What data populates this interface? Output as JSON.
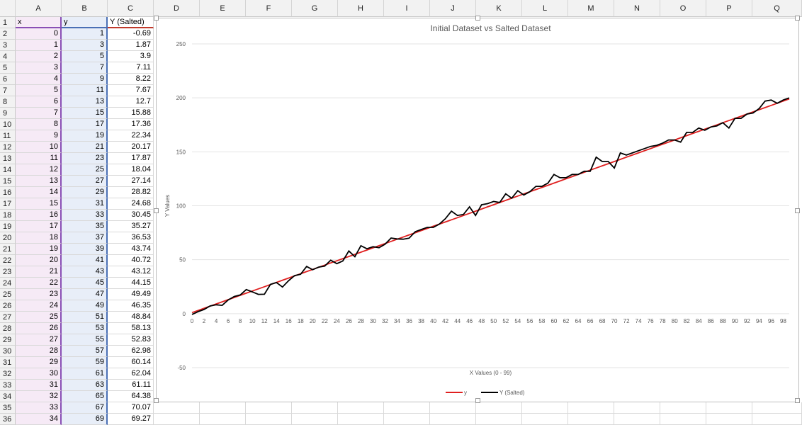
{
  "columns": [
    "A",
    "B",
    "C",
    "D",
    "E",
    "F",
    "G",
    "H",
    "I",
    "J",
    "K",
    "L",
    "M",
    "N",
    "O",
    "P",
    "Q"
  ],
  "rows": [
    "1",
    "2",
    "3",
    "4",
    "5",
    "6",
    "7",
    "8",
    "9",
    "10",
    "11",
    "12",
    "13",
    "14",
    "15",
    "16",
    "17",
    "18",
    "19",
    "20",
    "21",
    "22",
    "23",
    "24",
    "25",
    "26",
    "27",
    "28",
    "29",
    "30",
    "31",
    "32",
    "33",
    "34",
    "35",
    "36"
  ],
  "headers": {
    "x": "x",
    "y": "y",
    "ys": "Y (Salted)"
  },
  "table": [
    [
      0,
      1,
      "-0.69"
    ],
    [
      1,
      3,
      "1.87"
    ],
    [
      2,
      5,
      "3.9"
    ],
    [
      3,
      7,
      "7.11"
    ],
    [
      4,
      9,
      "8.22"
    ],
    [
      5,
      11,
      "7.67"
    ],
    [
      6,
      13,
      "12.7"
    ],
    [
      7,
      15,
      "15.88"
    ],
    [
      8,
      17,
      "17.36"
    ],
    [
      9,
      19,
      "22.34"
    ],
    [
      10,
      21,
      "20.17"
    ],
    [
      11,
      23,
      "17.87"
    ],
    [
      12,
      25,
      "18.04"
    ],
    [
      13,
      27,
      "27.14"
    ],
    [
      14,
      29,
      "28.82"
    ],
    [
      15,
      31,
      "24.68"
    ],
    [
      16,
      33,
      "30.45"
    ],
    [
      17,
      35,
      "35.27"
    ],
    [
      18,
      37,
      "36.53"
    ],
    [
      19,
      39,
      "43.74"
    ],
    [
      20,
      41,
      "40.72"
    ],
    [
      21,
      43,
      "43.12"
    ],
    [
      22,
      45,
      "44.15"
    ],
    [
      23,
      47,
      "49.49"
    ],
    [
      24,
      49,
      "46.35"
    ],
    [
      25,
      51,
      "48.84"
    ],
    [
      26,
      53,
      "58.13"
    ],
    [
      27,
      55,
      "52.83"
    ],
    [
      28,
      57,
      "62.98"
    ],
    [
      29,
      59,
      "60.14"
    ],
    [
      30,
      61,
      "62.04"
    ],
    [
      31,
      63,
      "61.11"
    ],
    [
      32,
      65,
      "64.38"
    ],
    [
      33,
      67,
      "70.07"
    ],
    [
      34,
      69,
      "69.27"
    ]
  ],
  "chart_data": {
    "type": "line",
    "title": "Initial Dataset vs Salted Dataset",
    "xlabel": "X Values (0 - 99)",
    "ylabel": "Y Values",
    "ylim": [
      -50,
      250
    ],
    "yticks": [
      "250",
      "200",
      "150",
      "100",
      "50",
      "0",
      "-50"
    ],
    "xticks": [
      "0",
      "2",
      "4",
      "6",
      "8",
      "10",
      "12",
      "14",
      "16",
      "18",
      "20",
      "22",
      "24",
      "26",
      "28",
      "30",
      "32",
      "34",
      "36",
      "38",
      "40",
      "42",
      "44",
      "46",
      "48",
      "50",
      "52",
      "54",
      "56",
      "58",
      "60",
      "62",
      "64",
      "66",
      "68",
      "70",
      "72",
      "74",
      "76",
      "78",
      "80",
      "82",
      "84",
      "86",
      "88",
      "90",
      "92",
      "94",
      "96",
      "98"
    ],
    "legend": "bottom",
    "series": [
      {
        "name": "y",
        "color": "#e02020",
        "formula": "2x+1"
      },
      {
        "name": "Y (Salted)",
        "color": "#000000",
        "values": [
          -0.69,
          1.87,
          3.9,
          7.11,
          8.22,
          7.67,
          12.7,
          15.88,
          17.36,
          22.34,
          20.17,
          17.87,
          18.04,
          27.14,
          28.82,
          24.68,
          30.45,
          35.27,
          36.53,
          43.74,
          40.72,
          43.12,
          44.15,
          49.49,
          46.35,
          48.84,
          58.13,
          52.83,
          62.98,
          60.14,
          62.04,
          61.11,
          64.38,
          70.07,
          69.27,
          69,
          70,
          76,
          78,
          80,
          80,
          83,
          88,
          95,
          91,
          92,
          99,
          91,
          101,
          102,
          104,
          103,
          111,
          107,
          114,
          110,
          113,
          118,
          118,
          121,
          129,
          126,
          126,
          129,
          129,
          132,
          132,
          145,
          141,
          141,
          135,
          149,
          147,
          149,
          151,
          153,
          155,
          156,
          158,
          161,
          161,
          159,
          168,
          168,
          172,
          170,
          173,
          174,
          177,
          172,
          181,
          181,
          185,
          186,
          190,
          197,
          198,
          195,
          198,
          200
        ]
      }
    ]
  }
}
